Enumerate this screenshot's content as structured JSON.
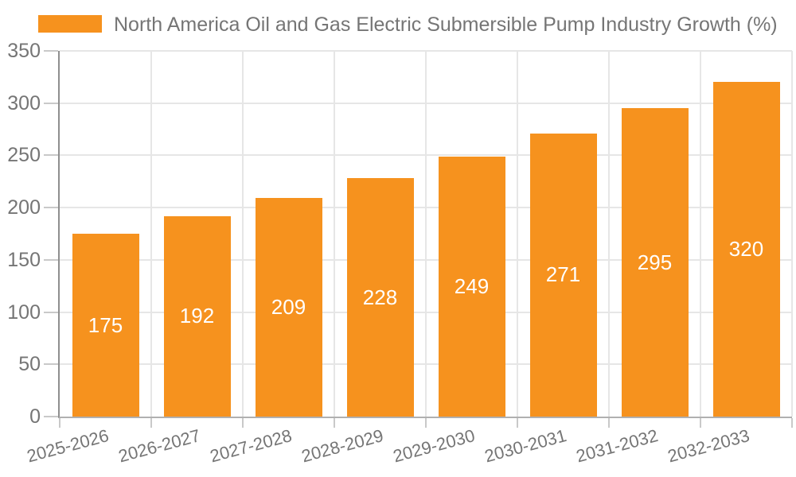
{
  "chart_data": {
    "type": "bar",
    "title": "North America Oil and Gas Electric Submersible Pump Industry Growth (%)",
    "categories": [
      "2025-2026",
      "2026-2027",
      "2027-2028",
      "2028-2029",
      "2029-2030",
      "2030-2031",
      "2031-2032",
      "2032-2033"
    ],
    "values": [
      175,
      192,
      209,
      228,
      249,
      271,
      295,
      320
    ],
    "xlabel": "",
    "ylabel": "",
    "ylim": [
      0,
      350
    ],
    "yticks": [
      0,
      50,
      100,
      150,
      200,
      250,
      300,
      350
    ],
    "grid": true,
    "legend_position": "top-left",
    "bar_color": "#F6921E",
    "value_label_color": "#FFFFFF",
    "axis_text_color": "#757575",
    "gridline_color": "#E6E6E6",
    "axis_line_color": "#9E9E9E"
  }
}
